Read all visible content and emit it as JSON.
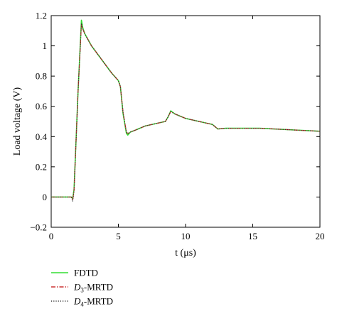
{
  "chart_data": {
    "type": "line",
    "xlabel": "t (μs)",
    "ylabel": "Load voltage (V)",
    "xlim": [
      0,
      20
    ],
    "ylim": [
      -0.2,
      1.2
    ],
    "xticks": [
      0,
      5,
      10,
      15,
      20
    ],
    "yticks": [
      -0.2,
      0,
      0.2,
      0.4,
      0.6,
      0.8,
      1,
      1.2
    ],
    "xtick_labels": [
      "0",
      "5",
      "10",
      "15",
      "20"
    ],
    "ytick_labels": [
      "−0.2",
      "0",
      "0.2",
      "0.4",
      "0.6",
      "0.8",
      "1",
      "1.2"
    ],
    "grid": false,
    "legend_position": "below-left",
    "series": [
      {
        "name": "FDTD",
        "legend_label": {
          "main": "FDTD",
          "sub": "",
          "rest": ""
        },
        "color": "#33dd33",
        "dash": "solid",
        "x": [
          0,
          1.5,
          1.6,
          1.7,
          2.0,
          2.25,
          2.35,
          2.5,
          3.0,
          3.5,
          4.0,
          4.5,
          5.0,
          5.15,
          5.35,
          5.6,
          5.7,
          5.9,
          6.2,
          7.0,
          8.0,
          8.5,
          8.7,
          8.9,
          9.2,
          10.0,
          11.0,
          12.0,
          12.4,
          13.0,
          15.5,
          20.0
        ],
        "y": [
          0.0,
          0.0,
          -0.01,
          0.05,
          0.7,
          1.17,
          1.12,
          1.08,
          1.0,
          0.94,
          0.88,
          0.82,
          0.77,
          0.73,
          0.55,
          0.42,
          0.41,
          0.43,
          0.44,
          0.47,
          0.49,
          0.5,
          0.53,
          0.57,
          0.55,
          0.52,
          0.5,
          0.48,
          0.45,
          0.455,
          0.455,
          0.435
        ]
      },
      {
        "name": "D3-MRTD",
        "legend_label": {
          "main": "D",
          "sub": "3",
          "rest": "-MRTD"
        },
        "color": "#cc3333",
        "dash": "dashdot",
        "x": [
          0,
          1.5,
          1.6,
          1.7,
          2.0,
          2.25,
          2.35,
          2.5,
          3.0,
          3.5,
          4.0,
          4.5,
          5.0,
          5.15,
          5.35,
          5.6,
          5.7,
          5.9,
          6.2,
          7.0,
          8.0,
          8.5,
          8.7,
          8.9,
          9.2,
          10.0,
          11.0,
          12.0,
          12.4,
          13.0,
          15.5,
          20.0
        ],
        "y": [
          0.0,
          0.0,
          -0.02,
          0.04,
          0.7,
          1.14,
          1.11,
          1.08,
          1.0,
          0.94,
          0.88,
          0.82,
          0.77,
          0.73,
          0.56,
          0.43,
          0.42,
          0.43,
          0.44,
          0.47,
          0.49,
          0.5,
          0.53,
          0.565,
          0.55,
          0.52,
          0.5,
          0.48,
          0.45,
          0.455,
          0.455,
          0.435
        ]
      },
      {
        "name": "D4-MRTD",
        "legend_label": {
          "main": "D",
          "sub": "4",
          "rest": "-MRTD"
        },
        "color": "#333333",
        "dash": "dotted",
        "x": [
          0,
          1.5,
          1.6,
          1.7,
          2.0,
          2.25,
          2.35,
          2.5,
          3.0,
          3.5,
          4.0,
          4.5,
          5.0,
          5.15,
          5.35,
          5.6,
          5.7,
          5.9,
          6.2,
          7.0,
          8.0,
          8.5,
          8.7,
          8.9,
          9.2,
          10.0,
          11.0,
          12.0,
          12.4,
          13.0,
          15.5,
          20.0
        ],
        "y": [
          0.0,
          0.0,
          -0.03,
          0.04,
          0.7,
          1.15,
          1.11,
          1.08,
          1.0,
          0.94,
          0.88,
          0.82,
          0.77,
          0.73,
          0.56,
          0.43,
          0.42,
          0.43,
          0.44,
          0.47,
          0.49,
          0.5,
          0.53,
          0.565,
          0.55,
          0.52,
          0.5,
          0.48,
          0.45,
          0.455,
          0.455,
          0.435
        ]
      }
    ]
  }
}
